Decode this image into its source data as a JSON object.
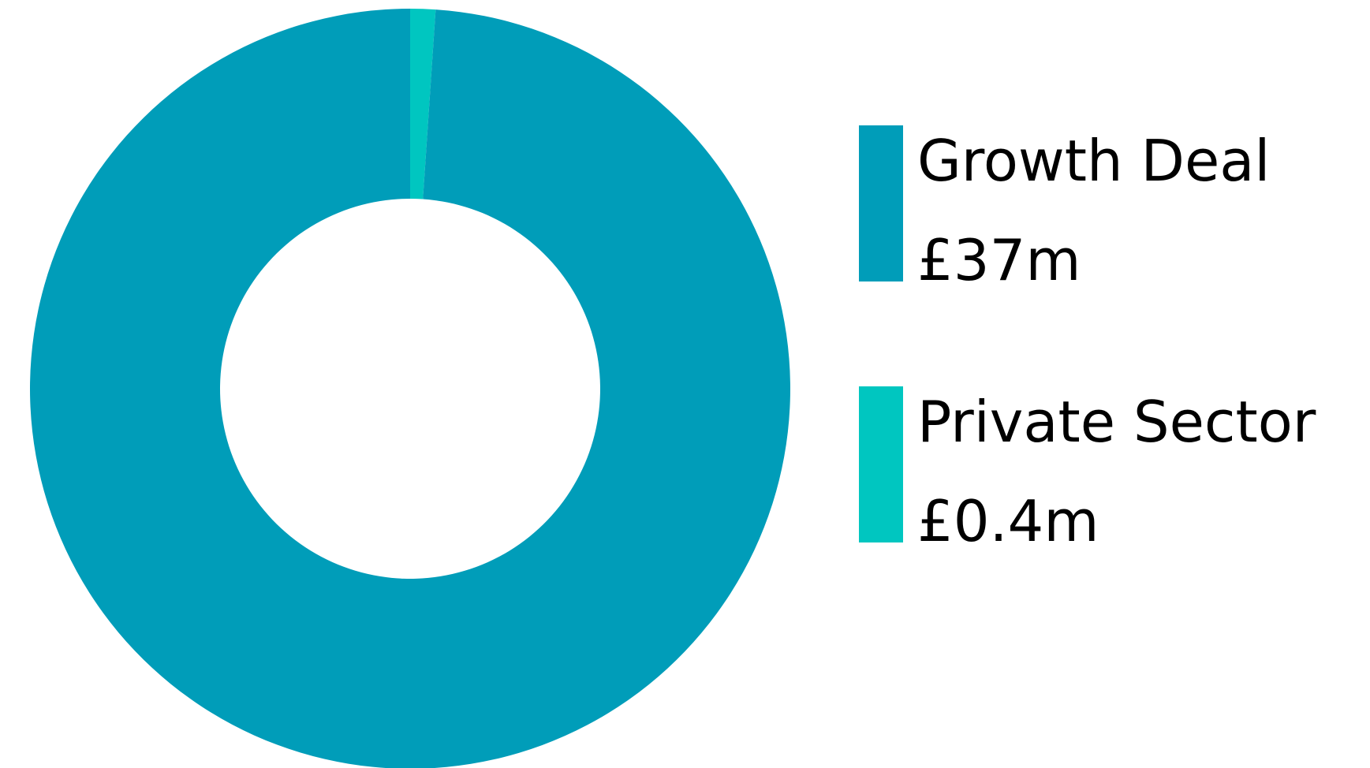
{
  "chart_data": {
    "type": "donut",
    "categories": [
      "Growth Deal",
      "Private Sector"
    ],
    "values": [
      37,
      0.4
    ],
    "value_labels": [
      "£37m",
      "£0.4m"
    ],
    "colors": [
      "#009db9",
      "#00c6c0"
    ]
  }
}
